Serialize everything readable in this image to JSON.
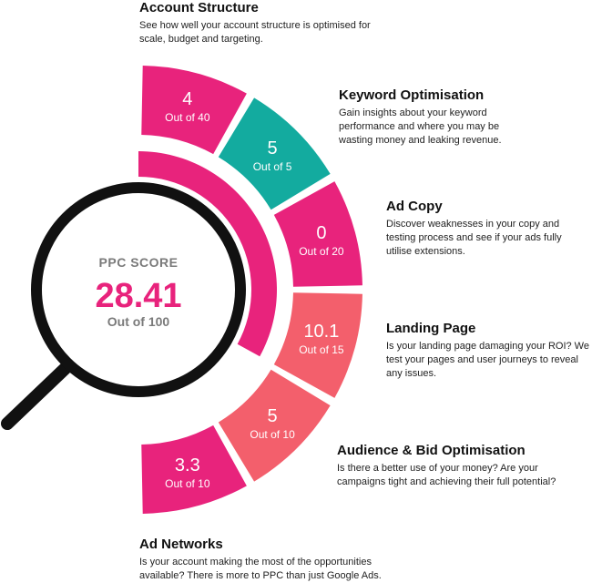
{
  "colors": {
    "magenta": "#e8237c",
    "teal": "#13ab9f",
    "coral": "#f35f6c",
    "ring": "#e8237c",
    "lens": "#111111"
  },
  "score": {
    "label": "PPC SCORE",
    "value": "28.41",
    "sub": "Out of 100",
    "achieved_fraction": 0.2841
  },
  "segments": [
    {
      "value": "4",
      "sub": "Out of 40",
      "color_key": "magenta"
    },
    {
      "value": "5",
      "sub": "Out of 5",
      "color_key": "teal"
    },
    {
      "value": "0",
      "sub": "Out of 20",
      "color_key": "magenta"
    },
    {
      "value": "10.1",
      "sub": "Out of 15",
      "color_key": "coral"
    },
    {
      "value": "5",
      "sub": "Out of 10",
      "color_key": "coral"
    },
    {
      "value": "3.3",
      "sub": "Out of 10",
      "color_key": "magenta"
    }
  ],
  "sections": {
    "account_structure": {
      "title": "Account Structure",
      "desc": "See how well your account structure is optimised for scale, budget and targeting."
    },
    "keyword": {
      "title": "Keyword Optimisation",
      "desc": "Gain insights about your keyword performance and where you may be wasting money and leaking revenue."
    },
    "ad_copy": {
      "title": "Ad Copy",
      "desc": "Discover weaknesses in your copy and testing process and see if your ads fully utilise extensions."
    },
    "landing": {
      "title": "Landing Page",
      "desc": "Is your landing page damaging your ROI? We test your pages and user journeys to reveal any issues."
    },
    "audience": {
      "title": "Audience & Bid Optimisation",
      "desc": "Is there a better use of your money? Are your campaigns tight and achieving their full potential?"
    },
    "ad_networks": {
      "title": "Ad Networks",
      "desc": "Is your account making the most of the opportunities available? There is more to PPC than just Google Ads."
    }
  }
}
